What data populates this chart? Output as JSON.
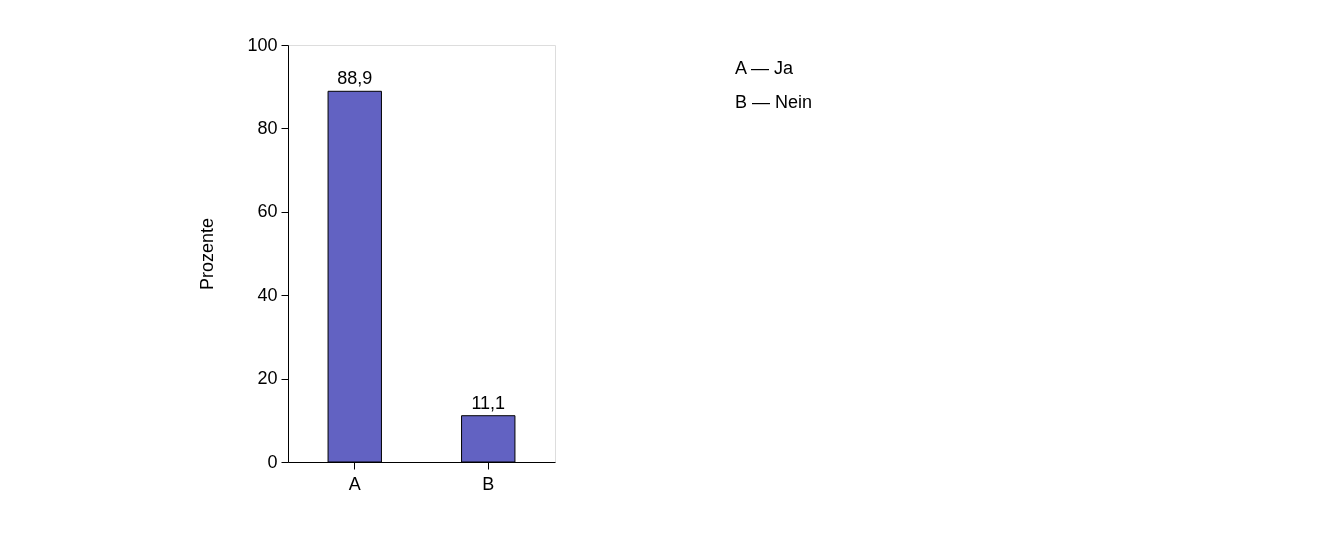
{
  "chart_data": {
    "type": "bar",
    "ylabel": "Prozente",
    "categories": [
      "A",
      "B"
    ],
    "series": [
      {
        "color": "#6262c2",
        "values": [
          88.9,
          11.1
        ],
        "value_labels": [
          "88,9",
          "11,1"
        ]
      }
    ],
    "ylim": [
      0,
      100
    ],
    "yticks": [
      0,
      20,
      40,
      60,
      80,
      100
    ],
    "grid": false,
    "annotations": [
      "A — Ja",
      "B — Nein"
    ]
  }
}
